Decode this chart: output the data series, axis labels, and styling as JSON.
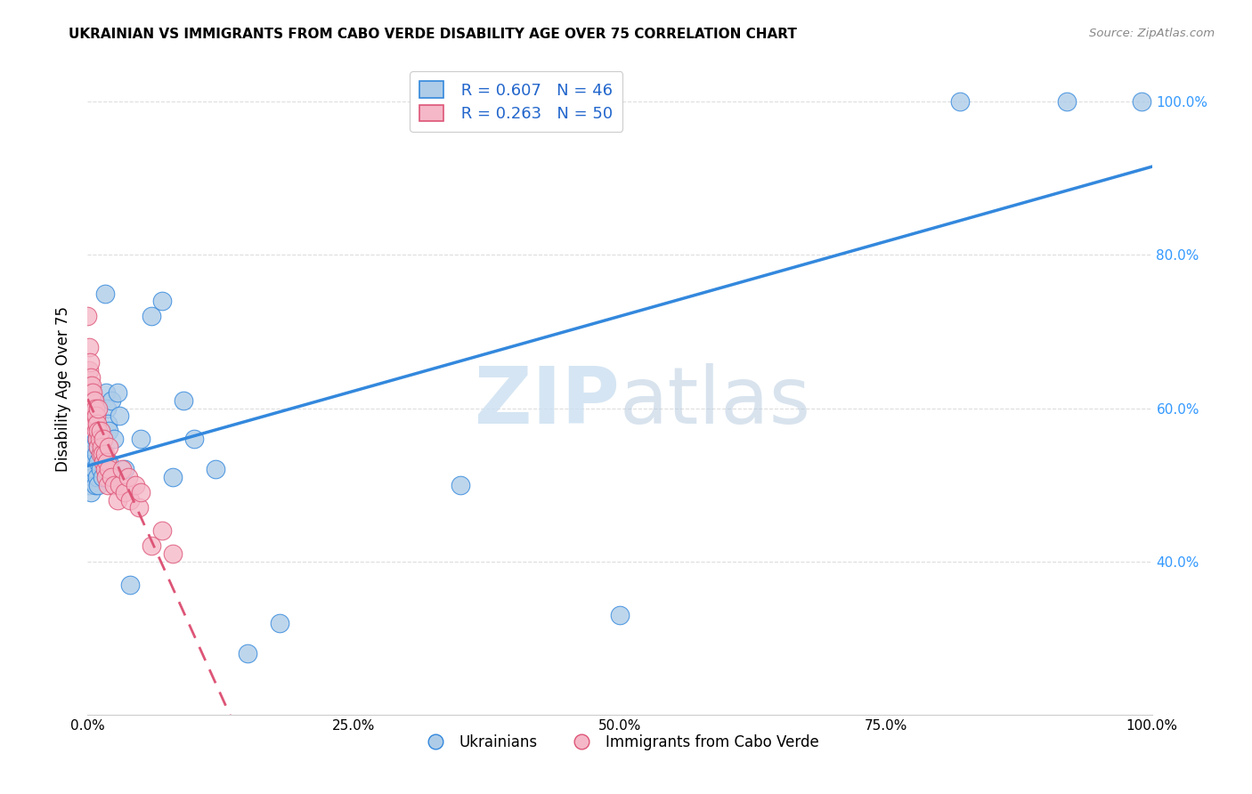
{
  "title": "UKRAINIAN VS IMMIGRANTS FROM CABO VERDE DISABILITY AGE OVER 75 CORRELATION CHART",
  "source": "Source: ZipAtlas.com",
  "ylabel": "Disability Age Over 75",
  "watermark_zip": "ZIP",
  "watermark_atlas": "atlas",
  "legend_r1": "R = 0.607",
  "legend_n1": "N = 46",
  "legend_r2": "R = 0.263",
  "legend_n2": "N = 50",
  "series1_color": "#aecce8",
  "series2_color": "#f5b8c8",
  "line1_color": "#3388dd",
  "line2_color": "#dd5577",
  "line2_style": "--",
  "background_color": "#ffffff",
  "grid_color": "#dddddd",
  "ukrainians_x": [
    0.0,
    0.001,
    0.002,
    0.003,
    0.003,
    0.004,
    0.005,
    0.005,
    0.006,
    0.007,
    0.008,
    0.008,
    0.009,
    0.01,
    0.01,
    0.01,
    0.012,
    0.014,
    0.015,
    0.015,
    0.016,
    0.017,
    0.018,
    0.019,
    0.02,
    0.02,
    0.022,
    0.025,
    0.028,
    0.03,
    0.035,
    0.04,
    0.05,
    0.06,
    0.07,
    0.08,
    0.09,
    0.1,
    0.12,
    0.15,
    0.18,
    0.35,
    0.5,
    0.82,
    0.92,
    0.99
  ],
  "ukrainians_y": [
    0.51,
    0.5,
    0.52,
    0.49,
    0.54,
    0.53,
    0.55,
    0.51,
    0.52,
    0.5,
    0.54,
    0.56,
    0.51,
    0.5,
    0.53,
    0.55,
    0.52,
    0.51,
    0.54,
    0.56,
    0.75,
    0.62,
    0.6,
    0.58,
    0.53,
    0.57,
    0.61,
    0.56,
    0.62,
    0.59,
    0.52,
    0.37,
    0.56,
    0.72,
    0.74,
    0.51,
    0.61,
    0.56,
    0.52,
    0.28,
    0.32,
    0.5,
    0.33,
    1.0,
    1.0,
    1.0
  ],
  "caboverde_x": [
    0.0,
    0.001,
    0.001,
    0.002,
    0.002,
    0.003,
    0.003,
    0.004,
    0.004,
    0.005,
    0.005,
    0.006,
    0.006,
    0.007,
    0.007,
    0.008,
    0.008,
    0.009,
    0.009,
    0.01,
    0.01,
    0.01,
    0.011,
    0.012,
    0.012,
    0.013,
    0.014,
    0.015,
    0.015,
    0.016,
    0.016,
    0.017,
    0.018,
    0.019,
    0.02,
    0.02,
    0.022,
    0.025,
    0.028,
    0.03,
    0.032,
    0.035,
    0.038,
    0.04,
    0.045,
    0.048,
    0.05,
    0.06,
    0.07,
    0.08
  ],
  "caboverde_y": [
    0.72,
    0.68,
    0.65,
    0.63,
    0.66,
    0.64,
    0.62,
    0.61,
    0.63,
    0.6,
    0.62,
    0.59,
    0.61,
    0.58,
    0.6,
    0.57,
    0.59,
    0.56,
    0.58,
    0.55,
    0.57,
    0.6,
    0.56,
    0.54,
    0.57,
    0.55,
    0.54,
    0.53,
    0.56,
    0.52,
    0.54,
    0.51,
    0.53,
    0.5,
    0.52,
    0.55,
    0.51,
    0.5,
    0.48,
    0.5,
    0.52,
    0.49,
    0.51,
    0.48,
    0.5,
    0.47,
    0.49,
    0.42,
    0.44,
    0.41
  ],
  "xlim": [
    0,
    1.0
  ],
  "ylim": [
    0.2,
    1.05
  ],
  "yticks": [
    0.4,
    0.6,
    0.8,
    1.0
  ],
  "ytick_labels": [
    "40.0%",
    "60.0%",
    "80.0%",
    "100.0%"
  ],
  "xticks": [
    0,
    0.25,
    0.5,
    0.75,
    1.0
  ],
  "xtick_labels": [
    "0.0%",
    "25.0%",
    "50.0%",
    "75.0%",
    "100.0%"
  ]
}
